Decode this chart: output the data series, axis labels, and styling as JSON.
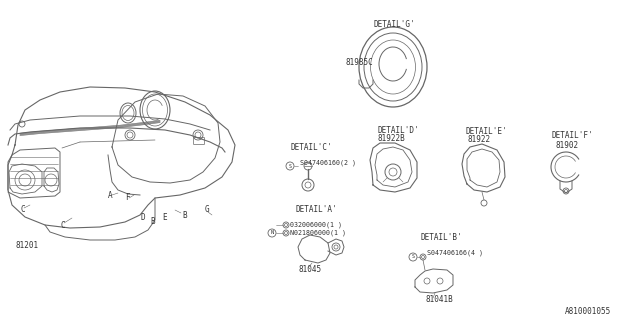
{
  "bg_color": "#ffffff",
  "line_color": "#666666",
  "text_color": "#333333",
  "part_labels": {
    "main": "81201",
    "detail_a_part": "81045",
    "detail_b_part": "81041B",
    "detail_c_screw": "S047406160(2 )",
    "detail_d_part": "81922B",
    "detail_e_part": "81922",
    "detail_f_part": "81902",
    "detail_g_part": "81985C",
    "nut": "N021806000(1 )",
    "bolt": "032006000(1 )",
    "screw_b": "S047406166(4 )"
  },
  "detail_labels": {
    "a": "DETAIL'A'",
    "b": "DETAIL'B'",
    "c": "DETAIL'C'",
    "d": "DETAIL'D'",
    "e": "DETAIL'E'",
    "f": "DETAIL'F'",
    "g": "DETAIL'G'"
  },
  "ref_code": "A810001055"
}
